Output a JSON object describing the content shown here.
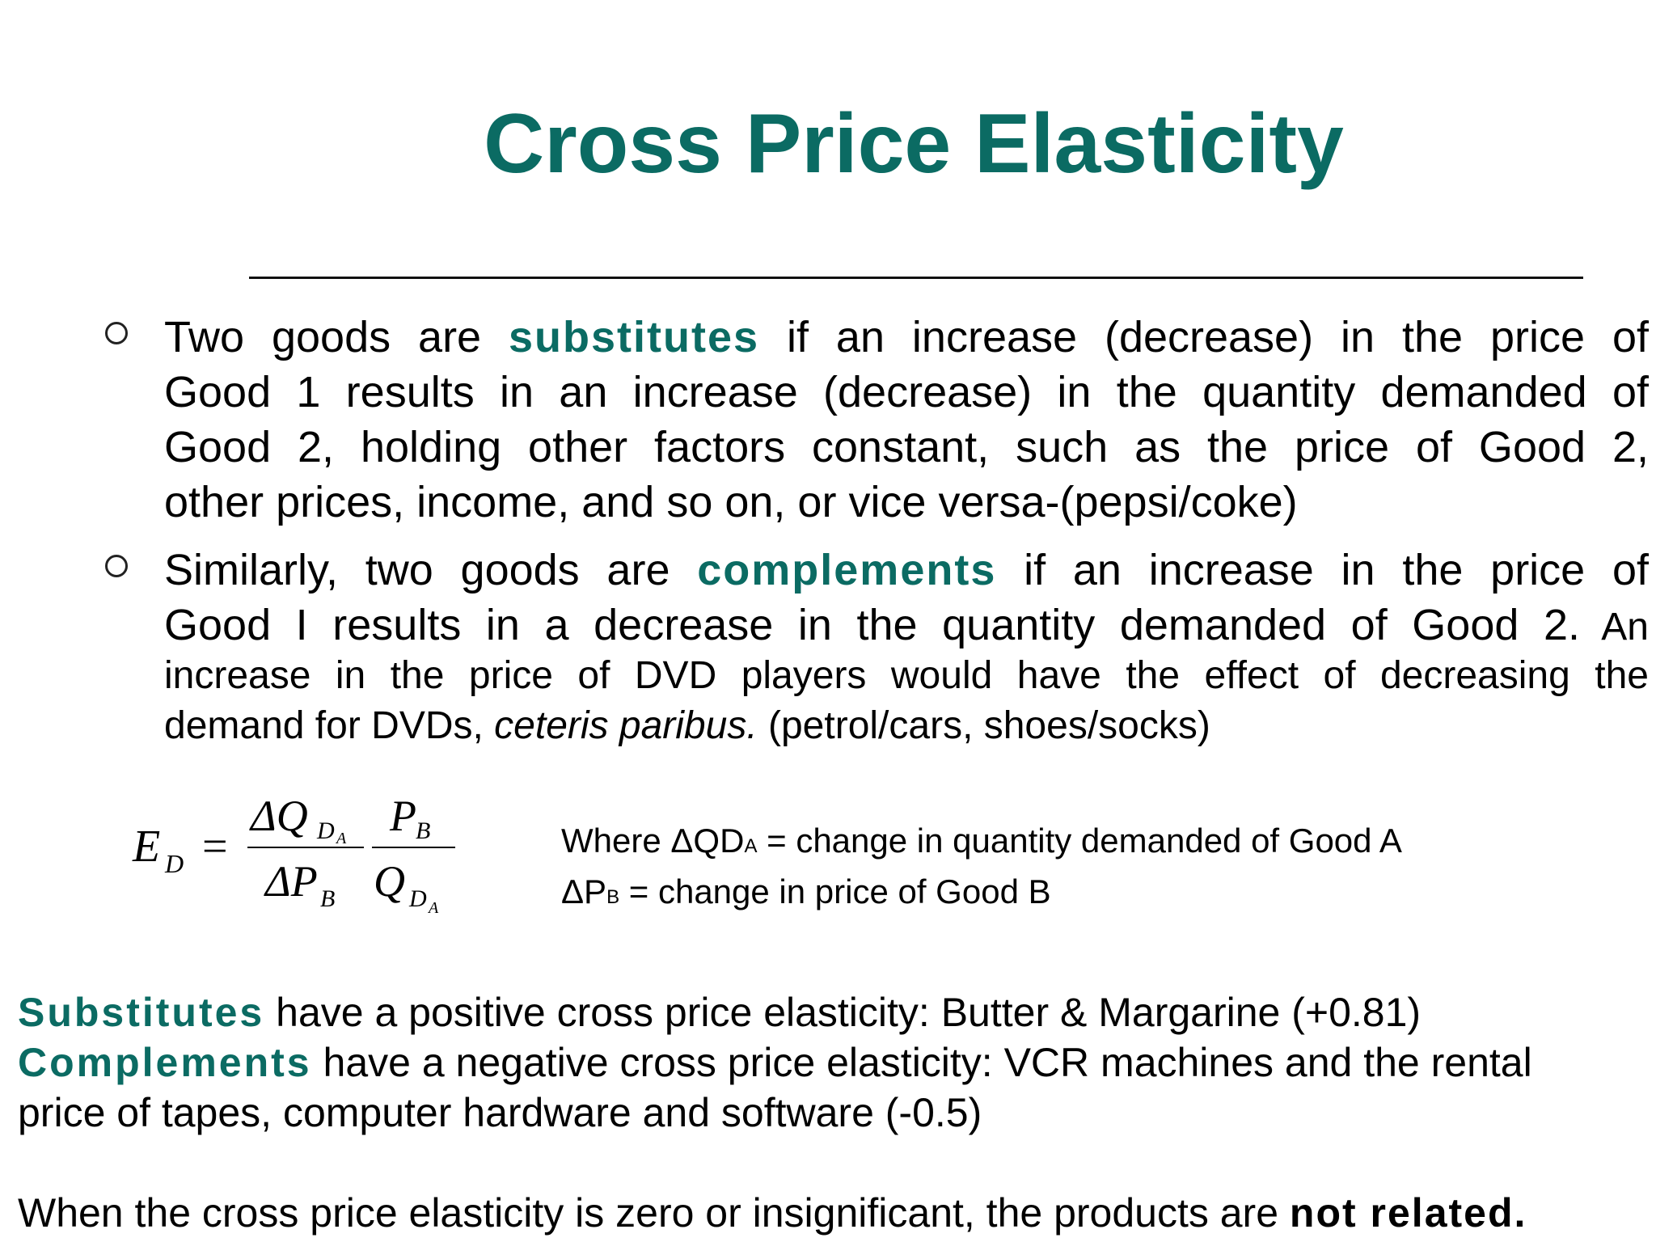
{
  "slide": {
    "title": "Cross Price Elasticity",
    "bullets": [
      {
        "line1_pre": "Two goods are ",
        "line1_term": "substitutes",
        "line1_post": " if an increase (decrease) in the price of",
        "line2": "Good 1 results in an increase (decrease) in the quantity demanded of",
        "line3": "Good 2, holding other factors constant, such as the price of Good 2,",
        "line4": "other prices, income, and so on, or vice versa-(pepsi/coke)"
      },
      {
        "line1_pre": "Similarly, two goods are ",
        "line1_term": "complements",
        "line1_post": " if an increase in the price of",
        "line2": "Good I results in a decrease in the quantity demanded of Good 2.",
        "line2_small": " An",
        "line3": "increase in the price of DVD players would have the effect of decreasing the",
        "line4_pre": "demand for DVDs, ",
        "line4_italic": "ceteris paribus.",
        "line4_post": " (petrol/cars, shoes/socks)"
      }
    ],
    "formula": {
      "lhs": "E",
      "lhs_sub": "D",
      "equals": "=",
      "num1": "ΔQ",
      "num1_sub": "D",
      "num1_subsub": "A",
      "den1": "ΔP",
      "den1_sub": "B",
      "num2": "P",
      "num2_sub": "B",
      "den2": "Q",
      "den2_sub": "D",
      "den2_subsub": "A"
    },
    "definitions": {
      "line1_pre": "Where ΔQD",
      "line1_sub": "A",
      "line1_post": " = change in quantity demanded of Good A",
      "line2_pre": "ΔP",
      "line2_sub": "B",
      "line2_post": " = change in price of Good B"
    },
    "summary": {
      "sub_term": "Substitutes",
      "sub_text": " have a positive cross price elasticity:   Butter & Margarine (+0.81)",
      "comp_term": "Complements",
      "comp_text": " have a negative cross price elasticity:  VCR machines and the rental",
      "comp_text2": "price of tapes, computer hardware and software (-0.5)",
      "zero_text": "When the cross price elasticity is zero or insignificant, the products are ",
      "zero_bold": "not related."
    }
  }
}
